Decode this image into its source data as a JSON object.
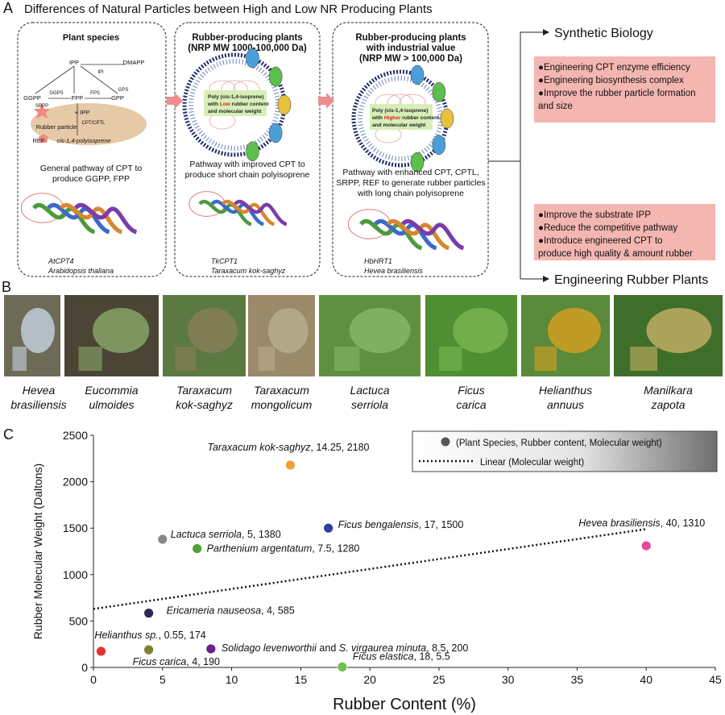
{
  "panel_a": {
    "label": "A",
    "title": "Differences of Natural Particles between High and Low NR Producing Plants",
    "boxes": [
      {
        "title": [
          "Plant species"
        ],
        "diagram": [
          "IPP",
          "DMAPP",
          "IPI",
          "GGPS",
          "FPS",
          "GPS",
          "GGPP",
          "FPP",
          "GPP",
          "SRPP",
          "+ IPP",
          "Rubber particle",
          "CPT/CPTL",
          "REF",
          "cis-1,4-polyisoprene"
        ],
        "caption": [
          "General pathway of CPT to",
          "produce GGPP, FPP"
        ],
        "protein": [
          "AtCPT4",
          "Arabidopsis thaliana"
        ]
      },
      {
        "title": [
          "Rubber-producing plants",
          "(NRP MW 1000-100,000 Da)"
        ],
        "particle": [
          [
            "Poly (cis-1,4-isoprene)"
          ],
          [
            "with ",
            "Low",
            " rubber content"
          ],
          [
            "and molecular weight"
          ]
        ],
        "caption": [
          "Pathway with improved CPT to",
          "produce short chain polyisoprene"
        ],
        "protein": [
          "TkCPT1",
          "Taraxacum kok-saghyz"
        ]
      },
      {
        "title": [
          "Rubber-producing plants",
          "with industrial value",
          "(NRP MW > 100,000 Da)"
        ],
        "particle": [
          [
            "Poly (cis-1,4-isoprene)"
          ],
          [
            "with ",
            "Higher",
            " rubber content"
          ],
          [
            "and molecular weight"
          ]
        ],
        "caption": [
          "Pathway with enhanced CPT, CPTL,",
          "SRPP, REF to generate rubber particles",
          "with long chain polyisoprene"
        ],
        "protein": [
          "HbHRT1",
          "Hevea brasiliensis"
        ]
      }
    ],
    "outcomes": [
      {
        "title": "Synthetic Biology",
        "bullets": [
          "●Engineering CPT enzyme efficiency",
          "●Engineering biosynthesis complex",
          "●Improve the rubber particle formation",
          "and size"
        ]
      },
      {
        "title": "Engineering Rubber Plants",
        "bullets": [
          "●Improve the substrate IPP",
          "●Reduce the competitive pathway",
          "●Introduce engineered CPT to",
          "produce high quality & amount rubber"
        ]
      }
    ]
  },
  "panel_b": {
    "label": "B",
    "plants": [
      [
        "Hevea",
        "brasiliensis"
      ],
      [
        "Eucommia",
        "ulmoides"
      ],
      [
        "Taraxacum",
        "kok-saghyz"
      ],
      [
        "Taraxacum",
        "mongolicum"
      ],
      [
        "Lactuca",
        "serriola"
      ],
      [
        "Ficus",
        "carica"
      ],
      [
        "Helianthus",
        "annuus"
      ],
      [
        "Manilkara",
        "zapota"
      ]
    ]
  },
  "chart_data": {
    "type": "scatter",
    "panel_label": "C",
    "x_label": "Rubber Content (%)",
    "y_label": "Rubber Molecular Weight (Daltons)",
    "xlim": [
      0,
      45
    ],
    "xticks": [
      0,
      5,
      10,
      15,
      20,
      25,
      30,
      35,
      40,
      45
    ],
    "ylim": [
      0,
      2500
    ],
    "yticks": [
      0,
      500,
      1000,
      1500,
      2000,
      2500
    ],
    "series": [
      {
        "name": "(Plant Species, Rubber content, Molecular weight)",
        "color": "#555555",
        "x": [
          0.55,
          4,
          4,
          5,
          7.5,
          8.5,
          14.25,
          17,
          18,
          40
        ],
        "values": [
          174,
          190,
          585,
          1380,
          1280,
          200,
          2180,
          1500,
          5.5,
          1310
        ],
        "colors": [
          "#e8312f",
          "#80802c",
          "#2d2a55",
          "#888888",
          "#55a033",
          "#6c1f8c",
          "#f2a03a",
          "#2e3f9c",
          "#6cc24a",
          "#e8459f"
        ],
        "point_labels": [
          [
            "Helianthus sp.",
            ", 0.55, 174"
          ],
          [
            "Ficus carica",
            ", 4, 190"
          ],
          [
            "Ericameria nauseosa",
            ", 4, 585"
          ],
          [
            "Lactuca serriola",
            ", 5, 1380"
          ],
          [
            "Parthenium argentatum",
            ", 7.5, 1280"
          ],
          [
            "Solidago levenworthii",
            " and ",
            "S. virgaurea minuta",
            ", 8.5, 200"
          ],
          [
            "Taraxacum kok-saghyz",
            ", 14.25, 2180"
          ],
          [
            "Ficus bengalensis",
            ", 17, 1500"
          ],
          [
            "Ficus elastica",
            ", 18, 5.5"
          ],
          [
            "Hevea brasiliensis",
            ", 40, 1310"
          ]
        ]
      },
      {
        "name": "Linear (Molecular weight)",
        "type": "line",
        "color": "#111111",
        "x": [
          0,
          40
        ],
        "values": [
          630,
          1490
        ]
      }
    ],
    "legend": "top-right"
  }
}
